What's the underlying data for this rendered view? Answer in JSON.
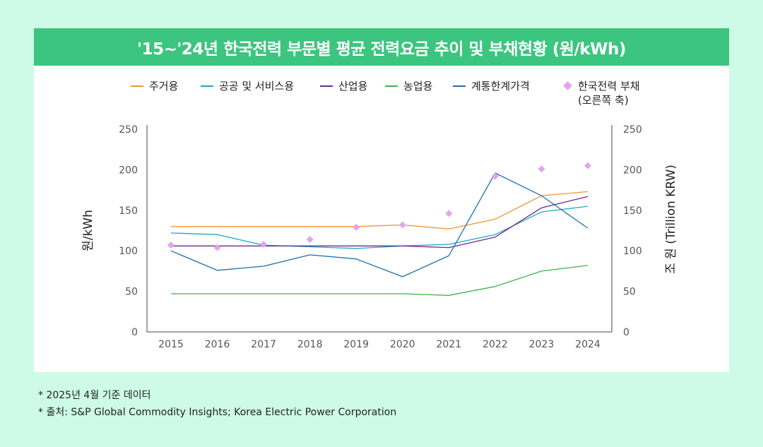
{
  "title": "'15~'24년  한국전력 부문별 평균 전력요금 추이 및 부채현황 (원/kWh)",
  "legend": {
    "items": [
      {
        "label": "주거용",
        "color": "#f0962e",
        "kind": "line"
      },
      {
        "label": "공공 및 서비스용",
        "color": "#17a9c9",
        "kind": "line"
      },
      {
        "label": "산업용",
        "color": "#6a2c8f",
        "kind": "line"
      },
      {
        "label": "농업용",
        "color": "#3fb34f",
        "kind": "line"
      },
      {
        "label": "계통한계가격",
        "color": "#1d6fb0",
        "kind": "line"
      },
      {
        "label": "한국전력 부채",
        "label2": "(오른쪽 축)",
        "color": "#e4a3ee",
        "kind": "diamond"
      }
    ]
  },
  "footnotes": [
    "* 2025년 4월 기준 데이터",
    "* 출처: S&P Global Commodity Insights; Korea Electric Power Corporation"
  ],
  "chart_data": {
    "type": "line",
    "title": "'15~'24년  한국전력 부문별 평균 전력요금 추이 및 부채현황 (원/kWh)",
    "x": [
      "2015",
      "2016",
      "2017",
      "2018",
      "2019",
      "2020",
      "2021",
      "2022",
      "2023",
      "2024"
    ],
    "ylabel": "원/kWh",
    "y2label": "조 원 (Trillion KRW)",
    "ylim": [
      0,
      250
    ],
    "y2lim": [
      0,
      250
    ],
    "yticks": [
      "0",
      "50",
      "100",
      "150",
      "200",
      "250"
    ],
    "y2ticks": [
      "0",
      "50",
      "100",
      "150",
      "200",
      "250"
    ],
    "grid": false,
    "legend_position": "top",
    "series": [
      {
        "name": "주거용",
        "color": "#f0962e",
        "axis": "left",
        "type": "line",
        "values": [
          130,
          130,
          130,
          130,
          130,
          132,
          127,
          139,
          168,
          173
        ]
      },
      {
        "name": "공공 및 서비스용",
        "color": "#17a9c9",
        "axis": "left",
        "type": "line",
        "values": [
          122,
          120,
          107,
          105,
          103,
          106,
          108,
          120,
          148,
          155
        ]
      },
      {
        "name": "산업용",
        "color": "#6a2c8f",
        "axis": "left",
        "type": "line",
        "values": [
          106,
          106,
          106,
          106,
          106,
          106,
          104,
          117,
          153,
          167
        ]
      },
      {
        "name": "농업용",
        "color": "#3fb34f",
        "axis": "left",
        "type": "line",
        "values": [
          47,
          47,
          47,
          47,
          47,
          47,
          45,
          56,
          75,
          82
        ]
      },
      {
        "name": "계통한계가격",
        "color": "#1d6fb0",
        "axis": "left",
        "type": "line",
        "values": [
          100,
          76,
          81,
          95,
          90,
          68,
          94,
          196,
          168,
          128
        ]
      },
      {
        "name": "한국전력 부채",
        "color": "#e4a3ee",
        "axis": "right",
        "type": "scatter",
        "values": [
          107,
          104,
          108,
          114,
          129,
          132,
          146,
          192,
          201,
          205
        ]
      }
    ]
  }
}
